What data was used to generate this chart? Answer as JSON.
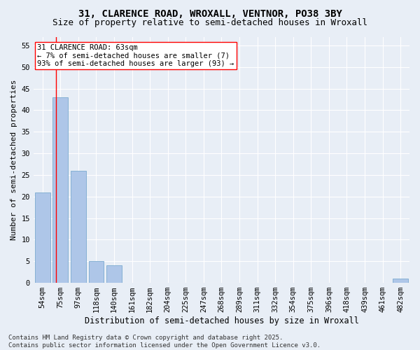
{
  "title1": "31, CLARENCE ROAD, WROXALL, VENTNOR, PO38 3BY",
  "title2": "Size of property relative to semi-detached houses in Wroxall",
  "xlabel": "Distribution of semi-detached houses by size in Wroxall",
  "ylabel": "Number of semi-detached properties",
  "bin_labels": [
    "54sqm",
    "75sqm",
    "97sqm",
    "118sqm",
    "140sqm",
    "161sqm",
    "182sqm",
    "204sqm",
    "225sqm",
    "247sqm",
    "268sqm",
    "289sqm",
    "311sqm",
    "332sqm",
    "354sqm",
    "375sqm",
    "396sqm",
    "418sqm",
    "439sqm",
    "461sqm",
    "482sqm"
  ],
  "bin_values": [
    21,
    43,
    26,
    5,
    4,
    0,
    0,
    0,
    0,
    0,
    0,
    0,
    0,
    0,
    0,
    0,
    0,
    0,
    0,
    0,
    1
  ],
  "bar_color": "#aec6e8",
  "bar_edge_color": "#7aaad0",
  "annotation_text": "31 CLARENCE ROAD: 63sqm\n← 7% of semi-detached houses are smaller (7)\n93% of semi-detached houses are larger (93) →",
  "annotation_box_color": "white",
  "annotation_box_edge_color": "red",
  "subject_line_color": "red",
  "ylim": [
    0,
    57
  ],
  "yticks": [
    0,
    5,
    10,
    15,
    20,
    25,
    30,
    35,
    40,
    45,
    50,
    55
  ],
  "background_color": "#e8eef6",
  "plot_bg_color": "#e8eef6",
  "footer_text": "Contains HM Land Registry data © Crown copyright and database right 2025.\nContains public sector information licensed under the Open Government Licence v3.0.",
  "title1_fontsize": 10,
  "title2_fontsize": 9,
  "xlabel_fontsize": 8.5,
  "ylabel_fontsize": 8,
  "tick_fontsize": 7.5,
  "annotation_fontsize": 7.5,
  "footer_fontsize": 6.5
}
